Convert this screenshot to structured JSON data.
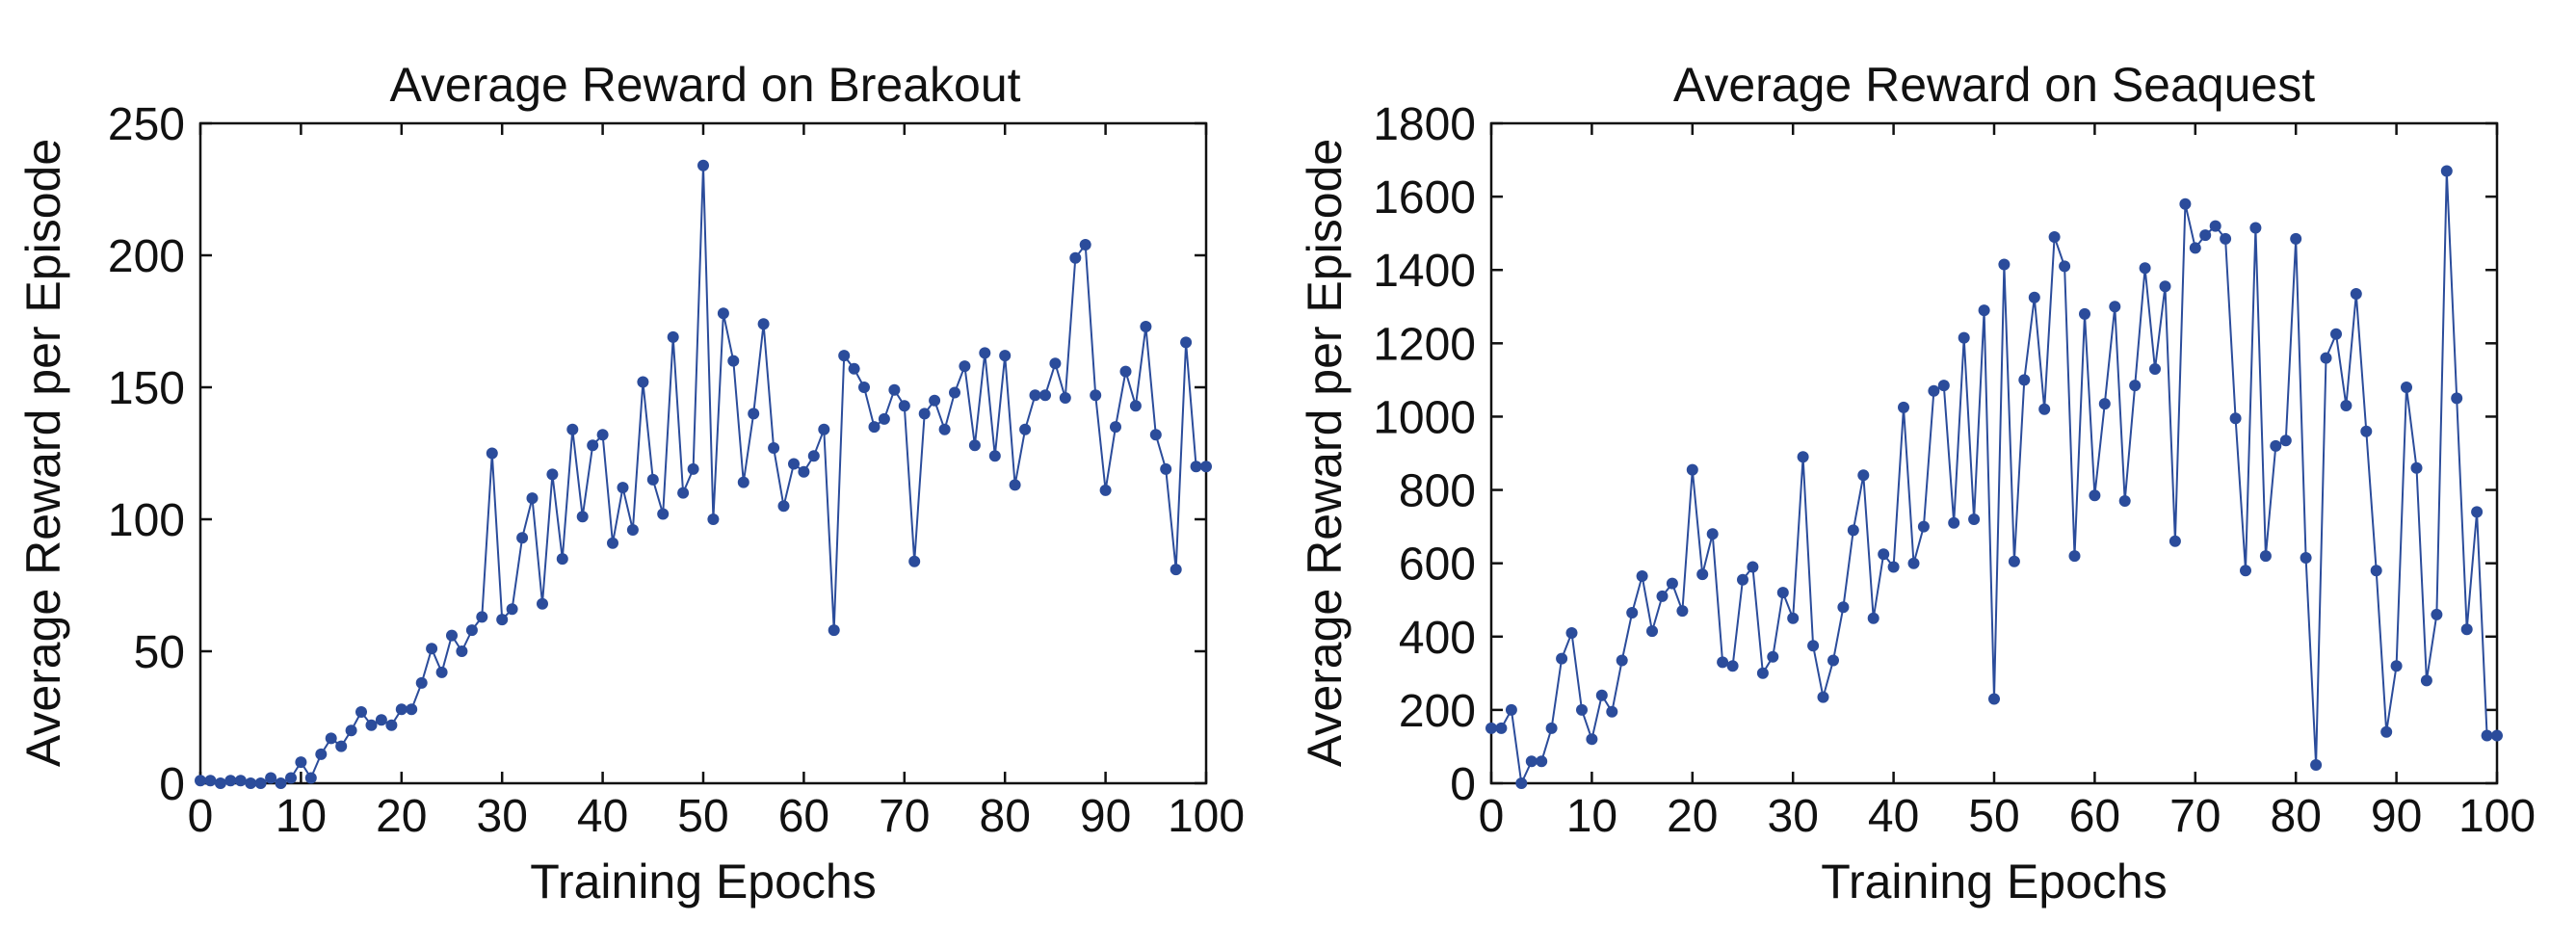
{
  "chart_data": [
    {
      "type": "line",
      "title": "Average Reward on Breakout",
      "xlabel": "Training Epochs",
      "ylabel": "Average Reward per Episode",
      "xlim": [
        0,
        100
      ],
      "ylim": [
        0,
        250
      ],
      "xticks": [
        "0",
        "10",
        "20",
        "30",
        "40",
        "50",
        "60",
        "70",
        "80",
        "90",
        "100"
      ],
      "yticks": [
        "0",
        "50",
        "100",
        "150",
        "200",
        "250"
      ],
      "grid": false,
      "color": "#2b4c9b",
      "series": [
        {
          "x": [
            0,
            1,
            2,
            3,
            4,
            5,
            6,
            7,
            8,
            9,
            10,
            11,
            12,
            13,
            14,
            15,
            16,
            17,
            18,
            19,
            20,
            21,
            22,
            23,
            24,
            25,
            26,
            27,
            28,
            29,
            30,
            31,
            32,
            33,
            34,
            35,
            36,
            37,
            38,
            39,
            40,
            41,
            42,
            43,
            44,
            45,
            46,
            47,
            48,
            49,
            50,
            51,
            52,
            53,
            54,
            55,
            56,
            57,
            58,
            59,
            60,
            61,
            62,
            63,
            64,
            65,
            66,
            67,
            68,
            69,
            70,
            71,
            72,
            73,
            74,
            75,
            76,
            77,
            78,
            79,
            80,
            81,
            82,
            83,
            84,
            85,
            86,
            87,
            88,
            89,
            90,
            91,
            92,
            93,
            94,
            95,
            96,
            97,
            98,
            99,
            100
          ],
          "values": [
            1,
            1,
            0,
            1,
            1,
            0,
            0,
            2,
            0,
            2,
            8,
            2,
            11,
            17,
            14,
            20,
            27,
            22,
            24,
            22,
            28,
            28,
            38,
            51,
            42,
            56,
            50,
            58,
            63,
            125,
            62,
            66,
            93,
            108,
            68,
            117,
            85,
            134,
            101,
            128,
            132,
            91,
            112,
            96,
            152,
            115,
            102,
            169,
            110,
            119,
            234,
            100,
            178,
            160,
            114,
            140,
            174,
            127,
            105,
            121,
            118,
            124,
            134,
            58,
            162,
            157,
            150,
            135,
            138,
            149,
            143,
            84,
            140,
            145,
            134,
            148,
            158,
            128,
            163,
            124,
            162,
            113,
            134,
            147,
            147,
            159,
            146,
            199,
            204,
            147,
            111,
            135,
            156,
            143,
            173,
            132,
            119,
            81,
            167,
            120,
            120
          ]
        }
      ]
    },
    {
      "type": "line",
      "title": "Average Reward on Seaquest",
      "xlabel": "Training Epochs",
      "ylabel": "Average Reward per Episode",
      "xlim": [
        0,
        100
      ],
      "ylim": [
        0,
        1800
      ],
      "xticks": [
        "0",
        "10",
        "20",
        "30",
        "40",
        "50",
        "60",
        "70",
        "80",
        "90",
        "100"
      ],
      "yticks": [
        "0",
        "200",
        "400",
        "600",
        "800",
        "1000",
        "1200",
        "1400",
        "1600",
        "1800"
      ],
      "grid": false,
      "color": "#2b4c9b",
      "series": [
        {
          "x": [
            0,
            1,
            2,
            3,
            4,
            5,
            6,
            7,
            8,
            9,
            10,
            11,
            12,
            13,
            14,
            15,
            16,
            17,
            18,
            19,
            20,
            21,
            22,
            23,
            24,
            25,
            26,
            27,
            28,
            29,
            30,
            31,
            32,
            33,
            34,
            35,
            36,
            37,
            38,
            39,
            40,
            41,
            42,
            43,
            44,
            45,
            46,
            47,
            48,
            49,
            50,
            51,
            52,
            53,
            54,
            55,
            56,
            57,
            58,
            59,
            60,
            61,
            62,
            63,
            64,
            65,
            66,
            67,
            68,
            69,
            70,
            71,
            72,
            73,
            74,
            75,
            76,
            77,
            78,
            79,
            80,
            81,
            82,
            83,
            84,
            85,
            86,
            87,
            88,
            89,
            90,
            91,
            92,
            93,
            94,
            95,
            96,
            97,
            98,
            99,
            100
          ],
          "values": [
            150,
            150,
            200,
            0,
            60,
            60,
            150,
            340,
            410,
            200,
            120,
            240,
            195,
            335,
            465,
            565,
            415,
            510,
            545,
            470,
            855,
            570,
            680,
            330,
            320,
            555,
            590,
            300,
            345,
            520,
            450,
            890,
            375,
            235,
            335,
            480,
            690,
            840,
            450,
            625,
            590,
            1025,
            600,
            700,
            1070,
            1085,
            710,
            1215,
            720,
            1290,
            230,
            1415,
            605,
            1100,
            1325,
            1020,
            1490,
            1410,
            620,
            1280,
            785,
            1035,
            1300,
            770,
            1085,
            1405,
            1130,
            1355,
            660,
            1580,
            1460,
            1495,
            1520,
            1485,
            995,
            580,
            1515,
            620,
            920,
            935,
            1485,
            615,
            50,
            1160,
            1225,
            1030,
            1335,
            960,
            580,
            140,
            320,
            1080,
            860,
            280,
            460,
            1670,
            1050,
            420,
            740,
            130,
            130
          ]
        }
      ]
    }
  ]
}
